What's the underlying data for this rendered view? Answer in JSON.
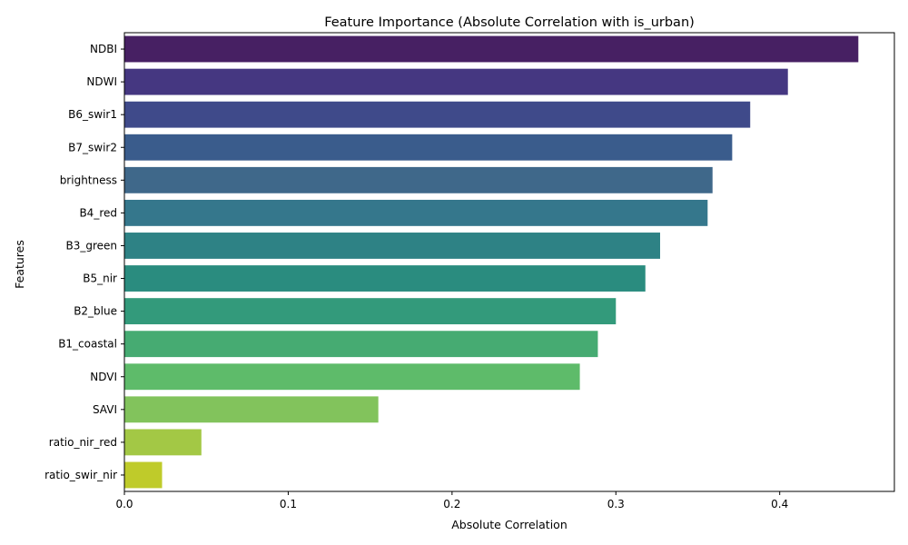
{
  "chart_data": {
    "type": "bar",
    "orientation": "horizontal",
    "title": "Feature Importance (Absolute Correlation with is_urban)",
    "xlabel": "Absolute Correlation",
    "ylabel": "Features",
    "xlim": [
      0,
      0.47
    ],
    "x_ticks": [
      0.0,
      0.1,
      0.2,
      0.3,
      0.4
    ],
    "x_tick_labels": [
      "0.0",
      "0.1",
      "0.2",
      "0.3",
      "0.4"
    ],
    "grid": false,
    "legend": "none",
    "categories": [
      "NDBI",
      "NDWI",
      "B6_swir1",
      "B7_swir2",
      "brightness",
      "B4_red",
      "B3_green",
      "B5_nir",
      "B2_blue",
      "B1_coastal",
      "NDVI",
      "SAVI",
      "ratio_nir_red",
      "ratio_swir_nir"
    ],
    "values": [
      0.448,
      0.405,
      0.382,
      0.371,
      0.359,
      0.356,
      0.327,
      0.318,
      0.3,
      0.289,
      0.278,
      0.155,
      0.047,
      0.023
    ],
    "colors": [
      "#472063",
      "#453781",
      "#3f4a8a",
      "#3a5c8c",
      "#3f688a",
      "#35778c",
      "#2e8285",
      "#2a8c7f",
      "#339a7b",
      "#46ab72",
      "#5ebb6a",
      "#82c35c",
      "#a3c845",
      "#bfcb2a"
    ]
  }
}
